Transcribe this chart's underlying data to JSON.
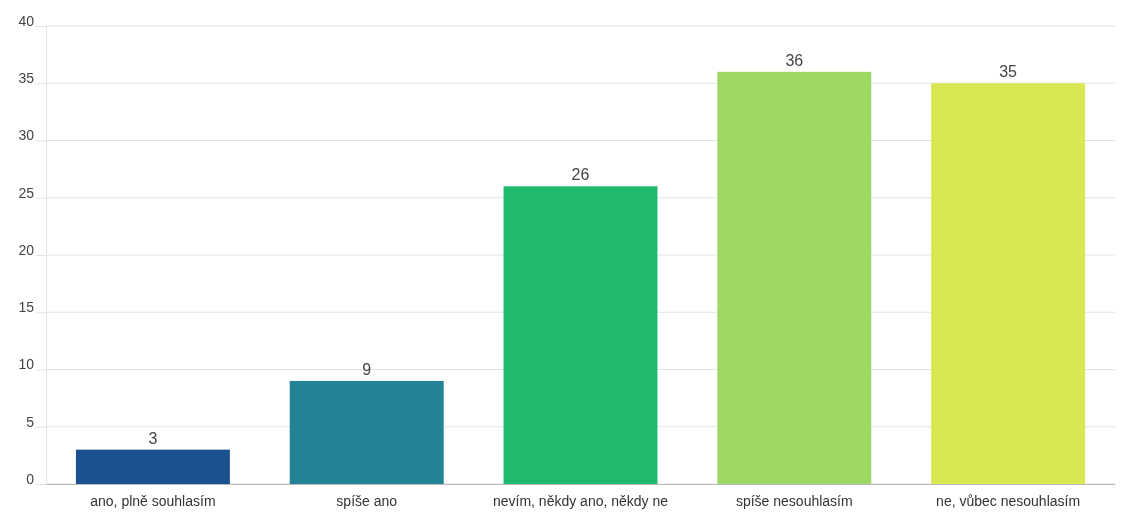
{
  "chart_data": {
    "type": "bar",
    "categories": [
      "ano, plně souhlasím",
      "spíše ano",
      "nevím, někdy ano, někdy ne",
      "spíše nesouhlasím",
      "ne, vůbec nesouhlasím"
    ],
    "values": [
      3,
      9,
      26,
      36,
      35
    ],
    "colors": [
      "#1b5190",
      "#238294",
      "#1fba6e",
      "#9dd764",
      "#d9e752"
    ],
    "ylim": [
      0,
      40
    ],
    "yticks": [
      0,
      5,
      10,
      15,
      20,
      25,
      30,
      35,
      40
    ],
    "grid": "y",
    "data_labels": true
  }
}
